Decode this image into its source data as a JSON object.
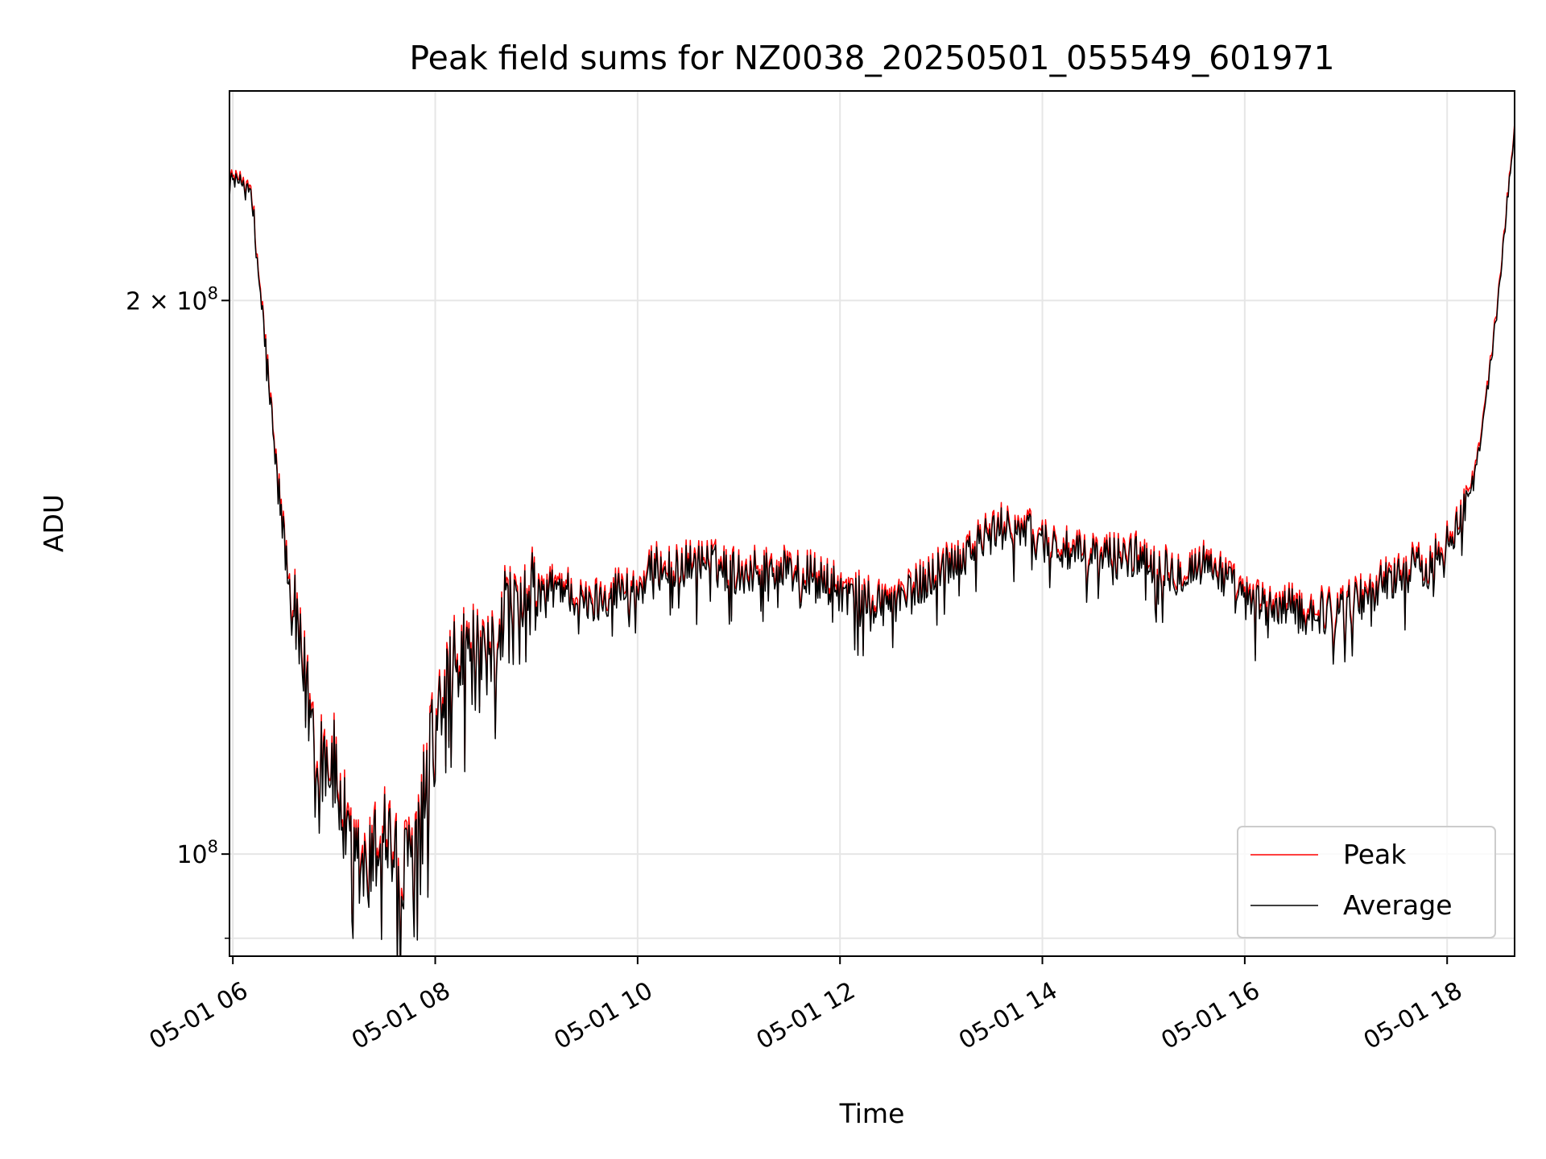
{
  "chart_data": {
    "type": "line",
    "title": "Peak field sums for NZ0038_20250501_055549_601971",
    "xlabel": "Time",
    "ylabel": "ADU",
    "y_scale": "log",
    "ylim": [
      88000000,
      260000000
    ],
    "xlim": [
      "2025-05-01 05:58",
      "2025-05-01 18:40"
    ],
    "x_ticks": [
      "05-01 06",
      "05-01 08",
      "05-01 10",
      "05-01 12",
      "05-01 14",
      "05-01 16",
      "05-01 18"
    ],
    "y_ticks": [
      {
        "value": 100000000,
        "base": "10",
        "exp": "8"
      },
      {
        "value": 200000000,
        "base": "2 × 10",
        "exp": "8"
      }
    ],
    "y_minor_ticks": [
      90000000
    ],
    "grid": true,
    "legend_position": "lower right",
    "x": [
      "05:58",
      "06:10",
      "06:17",
      "06:25",
      "06:33",
      "06:40",
      "06:50",
      "07:00",
      "07:10",
      "07:20",
      "07:30",
      "07:40",
      "07:50",
      "08:00",
      "08:10",
      "08:20",
      "08:30",
      "08:40",
      "08:50",
      "09:00",
      "09:15",
      "09:30",
      "09:45",
      "10:00",
      "10:10",
      "10:20",
      "10:40",
      "11:00",
      "11:20",
      "11:40",
      "12:00",
      "12:20",
      "12:40",
      "13:00",
      "13:20",
      "13:40",
      "14:00",
      "14:20",
      "14:40",
      "15:00",
      "15:20",
      "15:40",
      "16:00",
      "16:20",
      "16:40",
      "17:00",
      "17:20",
      "17:40",
      "17:50",
      "18:00",
      "18:10",
      "18:20",
      "18:30",
      "18:40"
    ],
    "series": [
      {
        "name": "Peak",
        "color": "#ff0000",
        "values": [
          234000000,
          232000000,
          200000000,
          165000000,
          142000000,
          128000000,
          116000000,
          112000000,
          100000000,
          98000000,
          105000000,
          97000000,
          104000000,
          118000000,
          126000000,
          130000000,
          125000000,
          137000000,
          135000000,
          139000000,
          141000000,
          137000000,
          140000000,
          140000000,
          144000000,
          144000000,
          145000000,
          143000000,
          144000000,
          143000000,
          140000000,
          138000000,
          139000000,
          144000000,
          148000000,
          152000000,
          149000000,
          146000000,
          146000000,
          146000000,
          143000000,
          145000000,
          138000000,
          137000000,
          136000000,
          137000000,
          141000000,
          144000000,
          144000000,
          150000000,
          154000000,
          168000000,
          200000000,
          250000000
        ]
      },
      {
        "name": "Average",
        "color": "#000000",
        "values": [
          233000000,
          231000000,
          199000000,
          164000000,
          141000000,
          127000000,
          115000000,
          111000000,
          99000000,
          97000000,
          104000000,
          96000000,
          103000000,
          117000000,
          125000000,
          129000000,
          124000000,
          136000000,
          134000000,
          138000000,
          140000000,
          136000000,
          139000000,
          139000000,
          143000000,
          143000000,
          144000000,
          142000000,
          143000000,
          142000000,
          139000000,
          137000000,
          138000000,
          143000000,
          147000000,
          151000000,
          148000000,
          145000000,
          145000000,
          145000000,
          142000000,
          144000000,
          137000000,
          136000000,
          135000000,
          136000000,
          140000000,
          143000000,
          143000000,
          149000000,
          153000000,
          167000000,
          199000000,
          249000000
        ]
      }
    ]
  }
}
